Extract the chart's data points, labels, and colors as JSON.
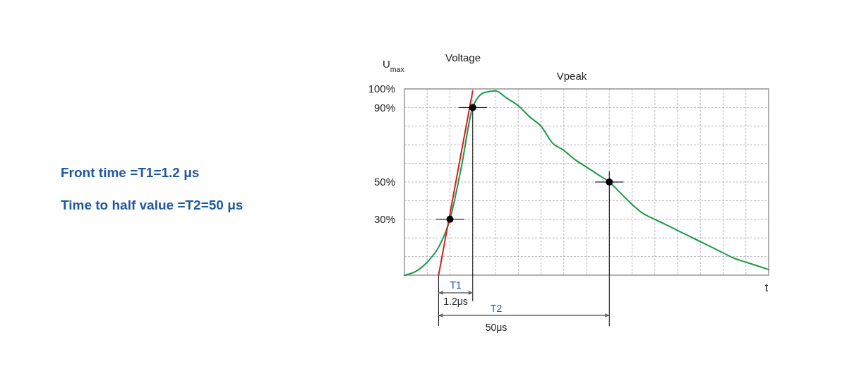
{
  "chart_data": {
    "type": "line",
    "title": "Voltage",
    "xlabel": "t",
    "ylabel": "U$_{max}$",
    "categories": [
      null,
      null,
      null,
      null,
      null,
      null,
      null,
      null,
      null,
      null,
      null,
      null,
      null,
      null,
      null,
      null,
      null,
      null,
      null,
      null,
      null,
      null,
      null,
      null,
      null,
      null,
      null,
      null,
      null,
      null,
      null,
      null,
      null
    ],
    "series": [
      {
        "color": "#1a9a4a",
        "values": [
          0,
          2,
          7,
          15,
          30,
          58,
          90,
          98,
          99,
          95,
          91,
          85,
          80,
          71,
          67,
          62,
          58,
          54,
          50,
          44,
          38,
          33,
          30,
          27,
          24,
          21,
          18,
          15,
          12,
          9,
          7,
          5,
          3
        ]
      },
      {
        "type": "line",
        "color": "#d42020",
        "values": [
          null,
          null,
          null,
          0,
          33,
          66,
          99,
          null,
          null,
          null,
          null,
          null,
          null,
          null,
          null,
          null,
          null,
          null,
          null,
          null,
          null,
          null,
          null,
          null,
          null,
          null,
          null,
          null,
          null,
          null,
          null,
          null,
          null
        ]
      },
      {
        "type": "scatter",
        "color": "#000000",
        "marker": "circle",
        "values": [
          null,
          null,
          null,
          null,
          30,
          null,
          90,
          null,
          null,
          null,
          null,
          null,
          null,
          null,
          null,
          null,
          null,
          null,
          50,
          null,
          null,
          null,
          null,
          null,
          null,
          null,
          null,
          null,
          null,
          null,
          null,
          null,
          null
        ]
      }
    ],
    "ylim": [
      0,
      100
    ],
    "yticks": [
      {
        "value": 10,
        "label": null
      },
      {
        "value": 20,
        "label": null
      },
      {
        "value": 30,
        "label": "30%"
      },
      {
        "value": 40,
        "label": null
      },
      {
        "value": 50,
        "label": "50%"
      },
      {
        "value": 60,
        "label": null
      },
      {
        "value": 70,
        "label": null
      },
      {
        "value": 80,
        "label": null
      },
      {
        "value": 90,
        "label": "90%"
      },
      {
        "value": 100,
        "label": "100%"
      }
    ],
    "grid": true,
    "annotations": [
      "Vpeak",
      "T1",
      "1.2μs",
      "T2",
      "50μs",
      "Front time =T1=1.2 μs",
      "Time to half value =T2=50 μs"
    ]
  }
}
